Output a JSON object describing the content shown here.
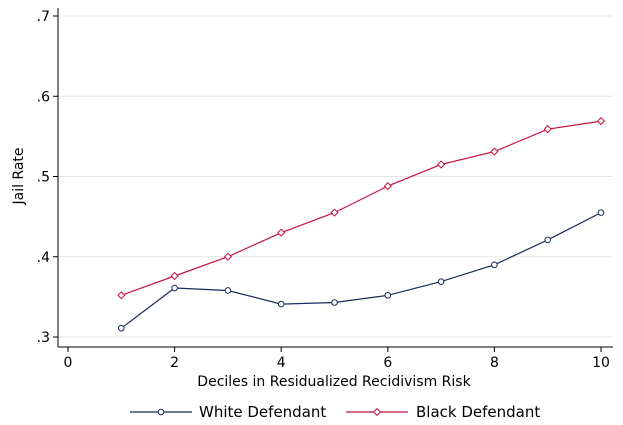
{
  "chart_data": {
    "type": "line",
    "title": "",
    "xlabel": "Deciles in Residualized Recidivism Risk",
    "ylabel": "Jail Rate",
    "xlim": [
      0,
      10
    ],
    "ylim": [
      0.3,
      0.7
    ],
    "x_ticks": [
      0,
      2,
      4,
      6,
      8,
      10
    ],
    "x_tick_labels": [
      "0",
      "2",
      "4",
      "6",
      "8",
      "10"
    ],
    "y_ticks": [
      0.3,
      0.4,
      0.5,
      0.6,
      0.7
    ],
    "y_tick_labels": [
      ".3",
      ".4",
      ".5",
      ".6",
      ".7"
    ],
    "grid": "horizontal",
    "legend_position": "bottom",
    "x": [
      1,
      2,
      3,
      4,
      5,
      6,
      7,
      8,
      9,
      10
    ],
    "series": [
      {
        "name": "White Defendant",
        "color": "#1a2a5c",
        "marker": "circle",
        "values": [
          0.311,
          0.361,
          0.358,
          0.341,
          0.343,
          0.352,
          0.369,
          0.39,
          0.421,
          0.455
        ]
      },
      {
        "name": "Black Defendant",
        "color": "#c4133f",
        "marker": "diamond",
        "values": [
          0.352,
          0.376,
          0.4,
          0.43,
          0.455,
          0.488,
          0.515,
          0.531,
          0.559,
          0.569
        ]
      }
    ]
  }
}
